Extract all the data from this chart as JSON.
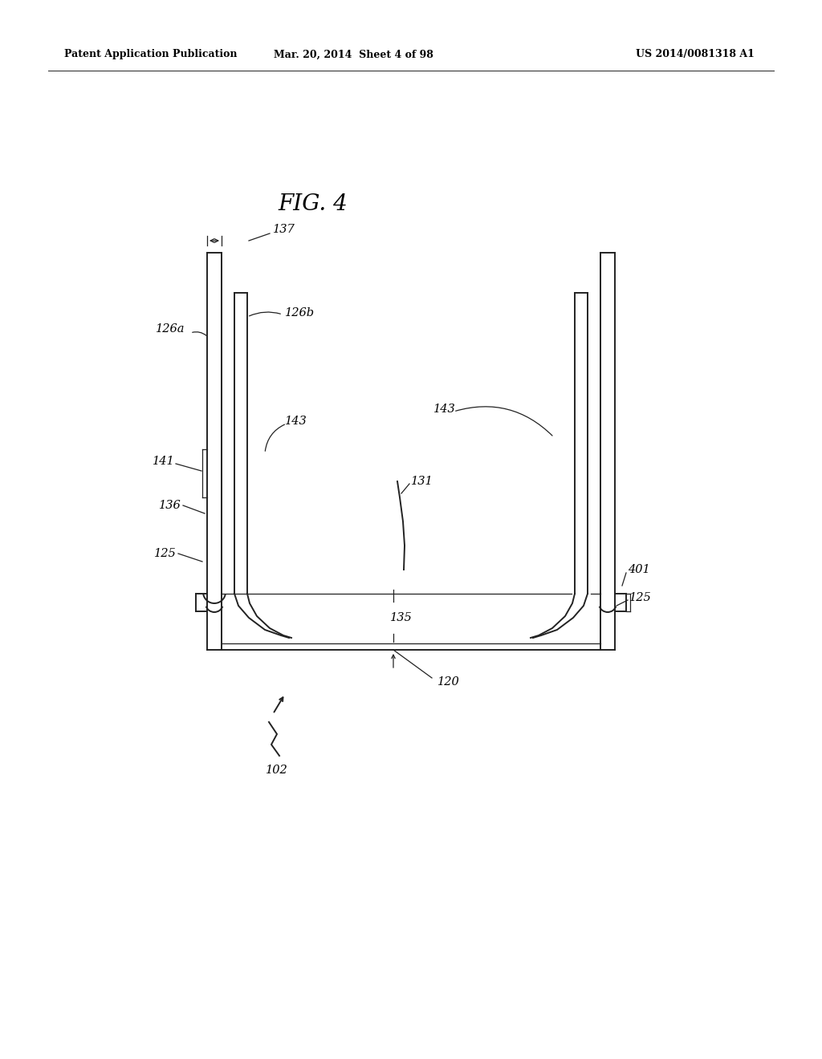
{
  "bg_color": "#ffffff",
  "line_color": "#222222",
  "header_left": "Patent Application Publication",
  "header_center": "Mar. 20, 2014  Sheet 4 of 98",
  "header_right": "US 2014/0081318 A1",
  "fig_label": "FIG. 4",
  "lw": 1.4,
  "lw_thin": 0.9,
  "fs_label": 10.5
}
